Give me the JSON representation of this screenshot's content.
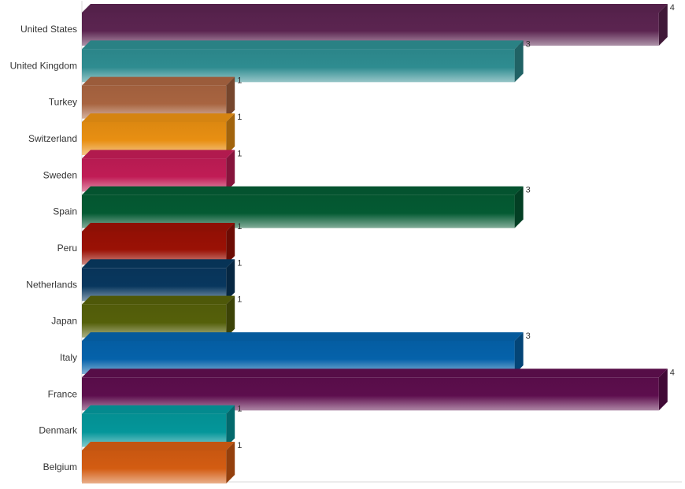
{
  "chart_data": {
    "type": "bar",
    "orientation": "horizontal",
    "style": "3d",
    "title": "",
    "xlabel": "",
    "ylabel": "",
    "xlim": [
      0,
      4
    ],
    "grid": false,
    "legend": "none",
    "categories": [
      "United States",
      "United Kingdom",
      "Turkey",
      "Switzerland",
      "Sweden",
      "Spain",
      "Peru",
      "Netherlands",
      "Japan",
      "Italy",
      "France",
      "Denmark",
      "Belgium"
    ],
    "values": [
      4,
      3,
      1,
      1,
      1,
      3,
      1,
      1,
      1,
      3,
      4,
      1,
      1
    ],
    "colors": [
      "#5b2450",
      "#2e8c90",
      "#a86440",
      "#e88f12",
      "#c01c55",
      "#045a33",
      "#9a1105",
      "#08375e",
      "#55600a",
      "#0562aa",
      "#5d0e4d",
      "#04969a",
      "#d35c12"
    ]
  }
}
